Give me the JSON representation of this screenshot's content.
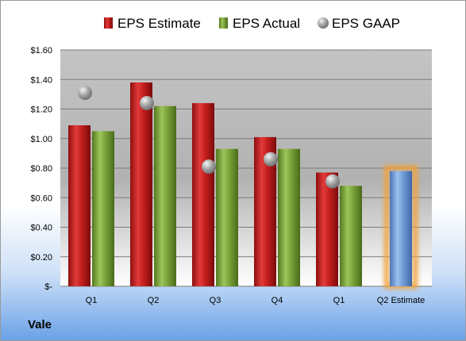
{
  "company": "Vale",
  "chart_data": {
    "type": "bar",
    "categories": [
      "Q1",
      "Q2",
      "Q3",
      "Q4",
      "Q1",
      "Q2 Estimate"
    ],
    "series": [
      {
        "name": "EPS Estimate",
        "color": "#cc2222",
        "values": [
          1.09,
          1.38,
          1.24,
          1.01,
          0.77,
          null
        ]
      },
      {
        "name": "EPS Actual",
        "color": "#7aa33a",
        "values": [
          1.05,
          1.22,
          0.93,
          0.93,
          0.68,
          null
        ]
      },
      {
        "name": "EPS GAAP",
        "color": "#a8a8a8",
        "values": [
          1.31,
          1.24,
          0.81,
          0.86,
          0.71,
          null
        ],
        "style": "sphere"
      }
    ],
    "estimate_bar": {
      "category": "Q2 Estimate",
      "value": 0.78,
      "color": "#6e9bd6",
      "glow": "#f0a23a"
    },
    "ylim": [
      0,
      1.6
    ],
    "yticks": [
      0,
      0.2,
      0.4,
      0.6,
      0.8,
      1.0,
      1.2,
      1.4,
      1.6
    ],
    "ytick_labels": [
      "$-",
      "$0.20",
      "$0.40",
      "$0.60",
      "$0.80",
      "$1.00",
      "$1.20",
      "$1.40",
      "$1.60"
    ],
    "grid": true,
    "legend": "top"
  }
}
